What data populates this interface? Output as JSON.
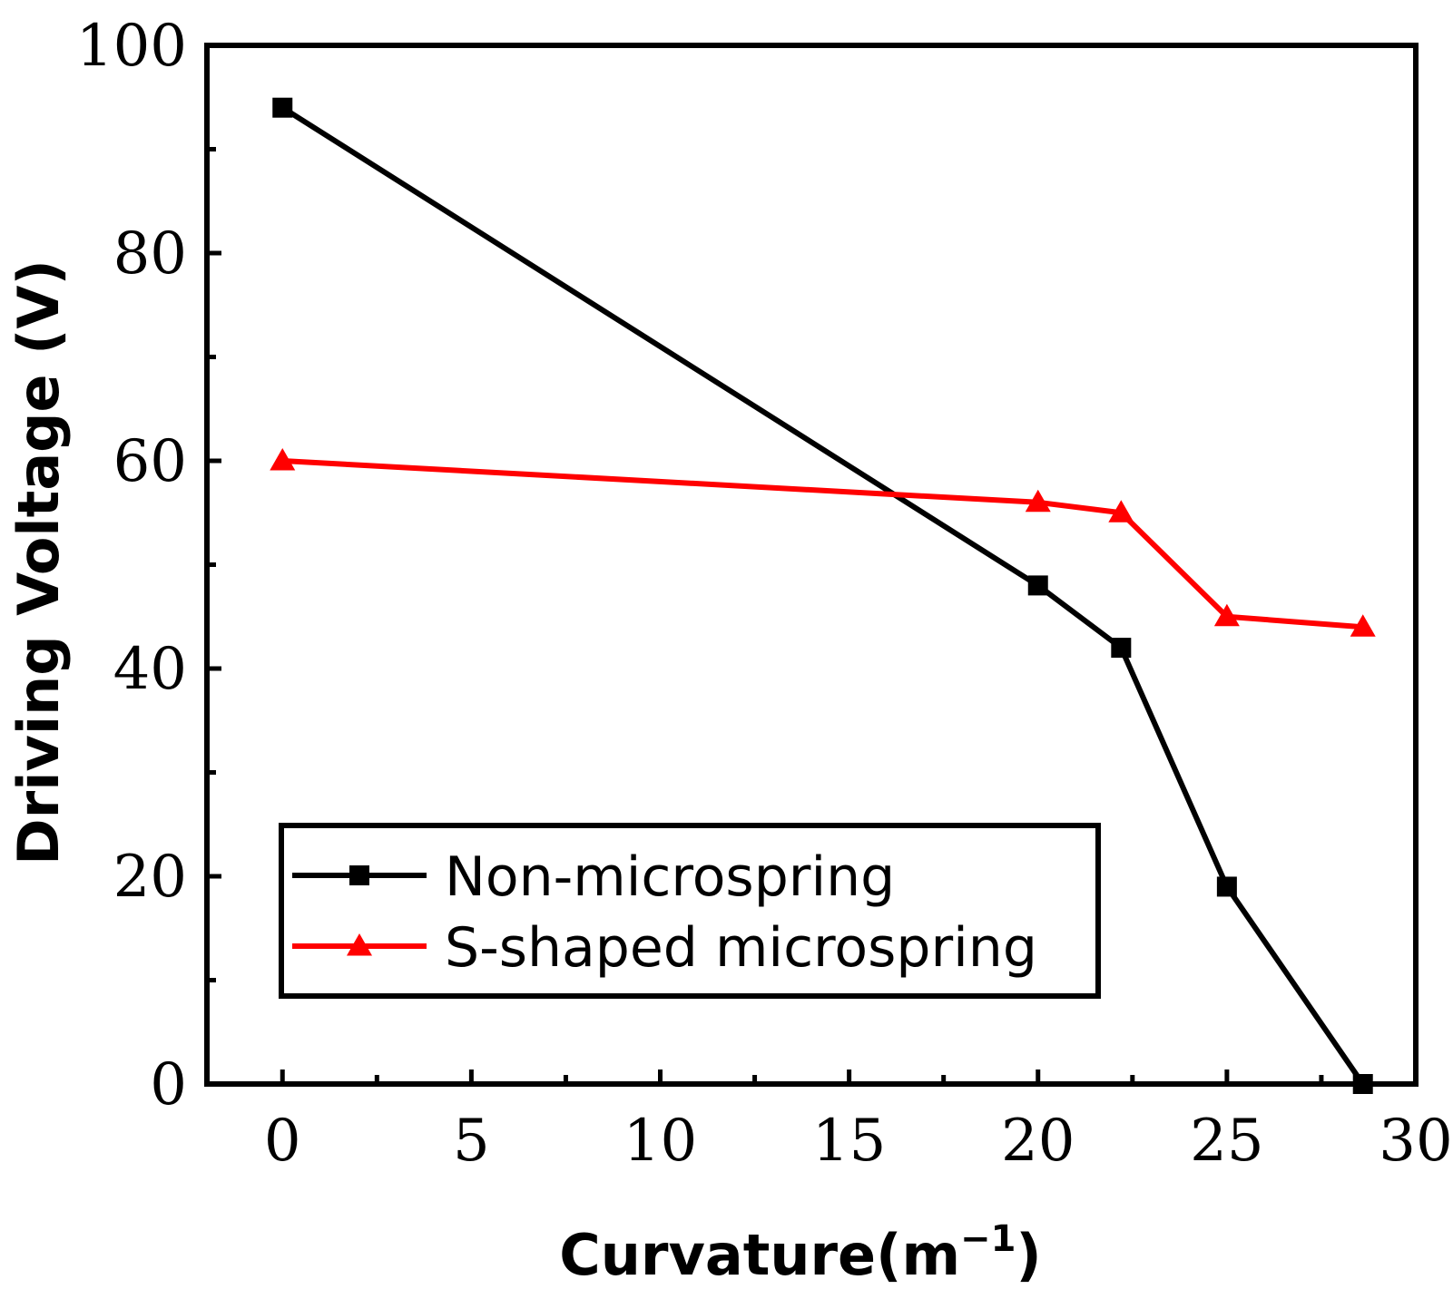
{
  "chart_data": {
    "type": "line",
    "title": "",
    "xlabel": "Curvature(m",
    "xlabel_sup": "−1",
    "xlabel_close": ")",
    "ylabel": "Driving Voltage (V)",
    "xlim": [
      -2,
      30
    ],
    "ylim": [
      0,
      100
    ],
    "xticks": [
      0,
      5,
      10,
      15,
      20,
      25,
      30
    ],
    "yticks": [
      0,
      20,
      40,
      60,
      80,
      100
    ],
    "xtick_labels": [
      "0",
      "5",
      "10",
      "15",
      "20",
      "25",
      "30"
    ],
    "ytick_labels": [
      "0",
      "20",
      "40",
      "60",
      "80",
      "100"
    ],
    "legend_position": "lower-left",
    "series": [
      {
        "name": "Non-microspring",
        "color": "#000000",
        "marker": "square",
        "x": [
          0,
          20,
          22.2,
          25,
          28.6
        ],
        "y": [
          94,
          48,
          42,
          19,
          0
        ]
      },
      {
        "name": "S-shaped microspring",
        "color": "#ff0000",
        "marker": "triangle",
        "x": [
          0,
          20,
          22.2,
          25,
          28.6
        ],
        "y": [
          60,
          56,
          55,
          45,
          44
        ]
      }
    ]
  }
}
